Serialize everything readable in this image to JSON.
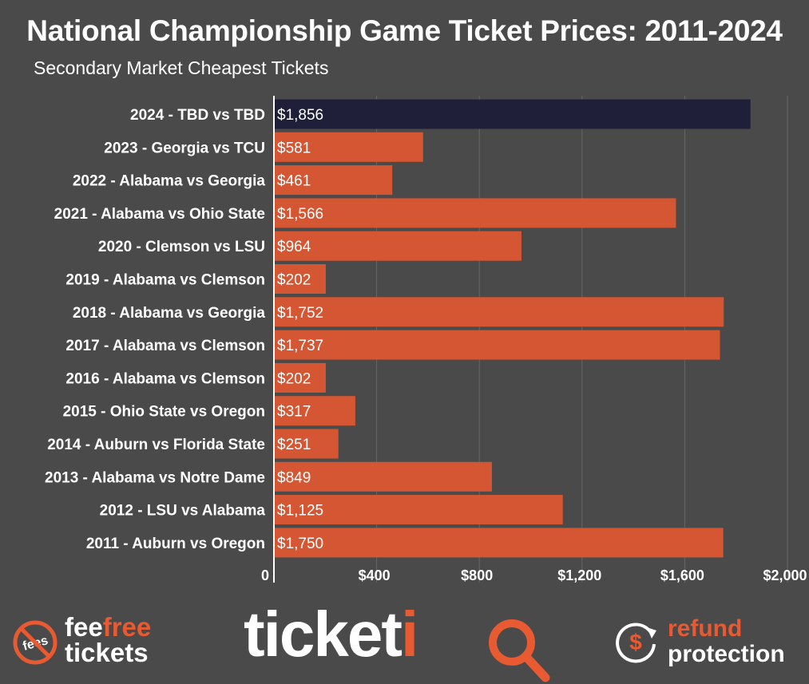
{
  "header": {
    "title": "National Championship Game Ticket Prices: 2011-2024",
    "subtitle": "Secondary Market Cheapest Tickets"
  },
  "chart_data": {
    "type": "bar",
    "orientation": "horizontal",
    "categories": [
      "2024 - TBD vs TBD",
      "2023 - Georgia vs TCU",
      "2022 - Alabama vs Georgia",
      "2021 - Alabama vs Ohio State",
      "2020 - Clemson vs LSU",
      "2019 - Alabama vs Clemson",
      "2018 - Alabama vs Georgia",
      "2017 - Alabama vs Clemson",
      "2016 - Alabama vs Clemson",
      "2015 - Ohio State vs Oregon",
      "2014 - Auburn vs Florida State",
      "2013 - Alabama vs Notre Dame",
      "2012 - LSU vs Alabama",
      "2011 - Auburn vs Oregon"
    ],
    "values": [
      1856,
      581,
      461,
      1566,
      964,
      202,
      1752,
      1737,
      202,
      317,
      251,
      849,
      1125,
      1750
    ],
    "value_labels": [
      "$1,856",
      "$581",
      "$461",
      "$1,566",
      "$964",
      "$202",
      "$1,752",
      "$1,737",
      "$202",
      "$317",
      "$251",
      "$849",
      "$1,125",
      "$1,750"
    ],
    "highlight_index": 0,
    "xlim": [
      0,
      2000
    ],
    "xticks": [
      0,
      400,
      800,
      1200,
      1600,
      2000
    ],
    "xtick_labels": [
      "0",
      "$400",
      "$800",
      "$1,200",
      "$1,600",
      "$2,000"
    ],
    "grid": true,
    "colors": {
      "bar": "#d45633",
      "highlight": "#1f1f3a",
      "background": "#4a4a4a",
      "grid": "#666666",
      "axis": "#ffffff"
    }
  },
  "footer": {
    "fee_logo": {
      "icon": "no-fees-icon",
      "icon_text": "fees",
      "line1_a": "fee",
      "line1_b": "free",
      "line2": "tickets"
    },
    "brand": {
      "text_a": "ticket",
      "text_b": "i",
      "glass": "Q"
    },
    "refund": {
      "icon": "refund-dollar-icon",
      "line1": "refund",
      "line2": "protection"
    },
    "accent_color": "#e85a32"
  }
}
